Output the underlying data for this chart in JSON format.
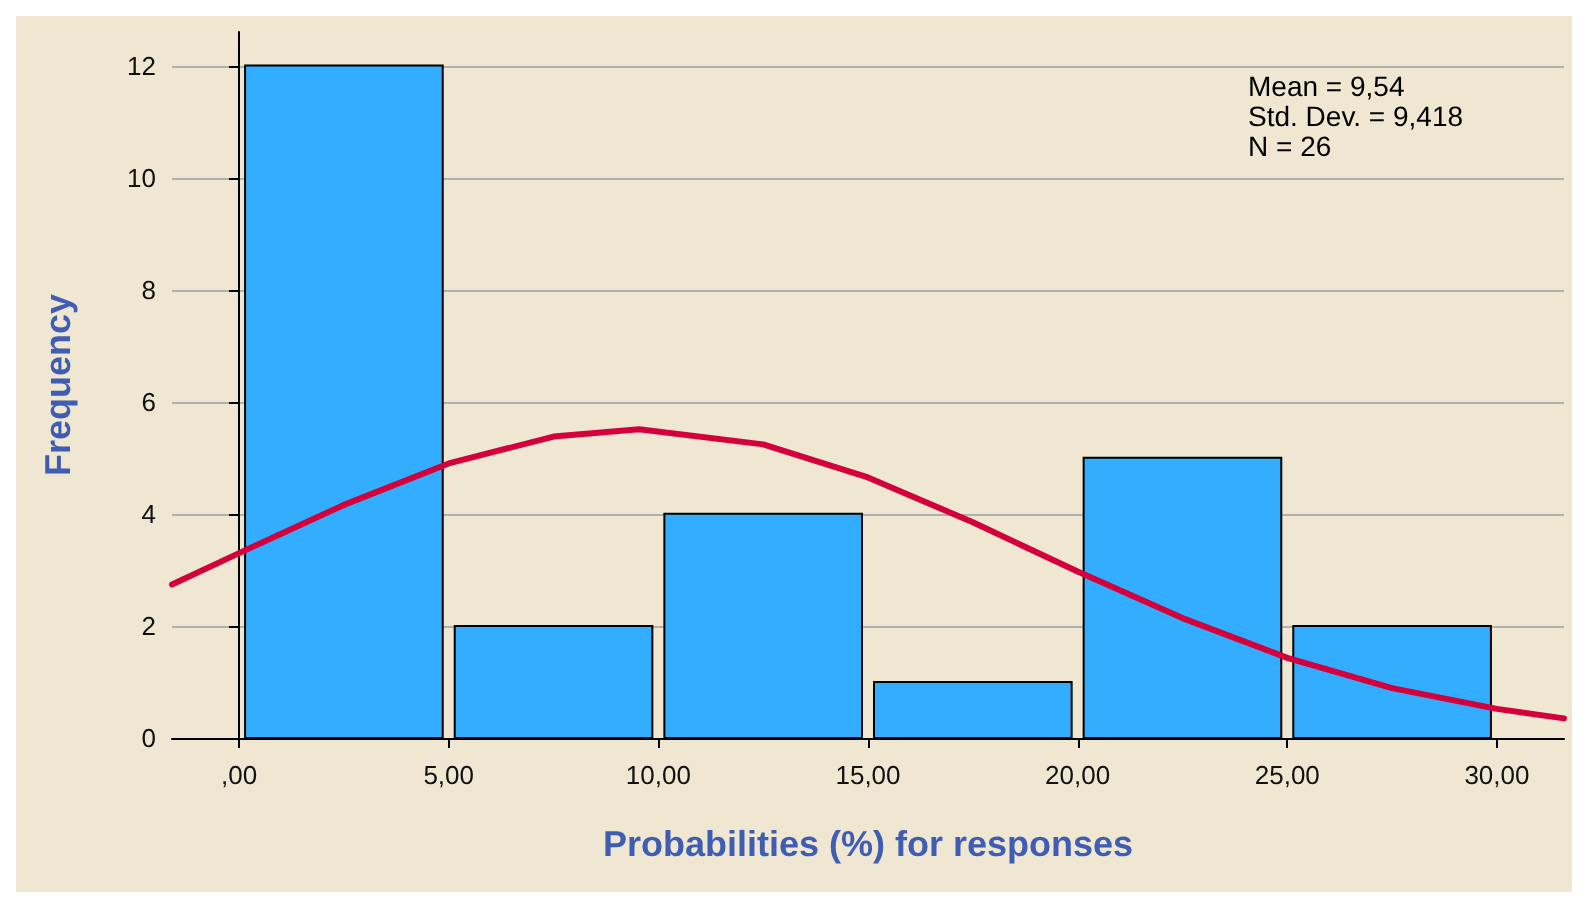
{
  "chart_data": {
    "type": "histogram",
    "xlabel": "Probabilities (%) for responses",
    "ylabel": "Frequency",
    "bins": [
      0,
      5,
      10,
      15,
      20,
      25,
      30
    ],
    "values": [
      12,
      2,
      4,
      1,
      5,
      2
    ],
    "color": "#33adff",
    "series": [
      {
        "type": "line",
        "color": "#d4003c",
        "x": [
          -1.6,
          0,
          2.5,
          5,
          7.5,
          9.54,
          12.5,
          15,
          17.5,
          20,
          22.5,
          25,
          27.5,
          30,
          31.6
        ],
        "values": [
          2.74,
          3.3,
          4.16,
          4.9,
          5.38,
          5.51,
          5.24,
          4.65,
          3.85,
          2.97,
          2.14,
          1.43,
          0.89,
          0.52,
          0.35
        ]
      }
    ],
    "xlim": [
      -1.6,
      31.6
    ],
    "xticks": [
      {
        "value": 0,
        "label": ",00"
      },
      {
        "value": 5,
        "label": "5,00"
      },
      {
        "value": 10,
        "label": "10,00"
      },
      {
        "value": 15,
        "label": "15,00"
      },
      {
        "value": 20,
        "label": "20,00"
      },
      {
        "value": 25,
        "label": "25,00"
      },
      {
        "value": 30,
        "label": "30,00"
      }
    ],
    "ylim": [
      0,
      12.6
    ],
    "yticks": [
      0,
      2,
      4,
      6,
      8,
      10,
      12
    ],
    "grid": "y",
    "marker": "none",
    "line_style": "solid",
    "annotations": [
      "Mean = 9,54",
      "Std. Dev. = 9,418",
      "N = 26"
    ]
  }
}
